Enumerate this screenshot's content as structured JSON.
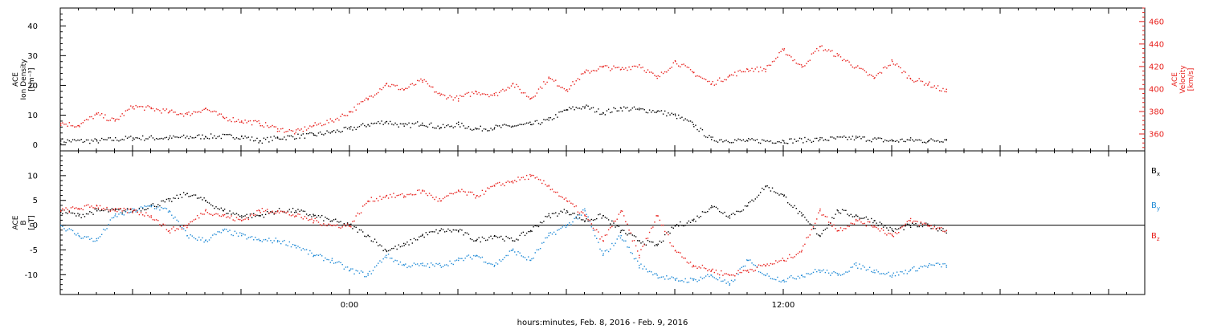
{
  "colors": {
    "black": "#000000",
    "red": "#e8201c",
    "blue": "#1f8ad6"
  },
  "chart_data": [
    {
      "type": "scatter",
      "panel": "top",
      "xlabel": "hours:minutes, Feb.  8, 2016 - Feb.  9, 2016",
      "x_unit": "hours relative to 2016-02-08 00:00 (Feb. 9 00:00 = 24)",
      "xlim": [
        16.0,
        46.0
      ],
      "x_tick_labels": [
        {
          "x": 24,
          "label": "0:00"
        },
        {
          "x": 36,
          "label": "12:00"
        }
      ],
      "left_axis": {
        "label_lines": [
          "ACE",
          "Ion Density",
          "[cm⁻³]"
        ],
        "ylim": [
          -2,
          46
        ],
        "ticks": [
          0,
          10,
          20,
          30,
          40
        ],
        "color": "#000000"
      },
      "right_axis": {
        "label_lines": [
          "ACE",
          "Velocity",
          "[km/s]"
        ],
        "ylim": [
          345,
          472
        ],
        "ticks": [
          360,
          380,
          400,
          420,
          440,
          460
        ],
        "color": "#e8201c"
      },
      "series": [
        {
          "color": "#000000",
          "axis": "left",
          "x": [
            16.0,
            17.0,
            18.0,
            19.0,
            20.0,
            21.0,
            21.5,
            22.0,
            23.0,
            23.5,
            24.0,
            24.5,
            25.0,
            25.5,
            26.0,
            26.5,
            27.0,
            27.5,
            28.0,
            28.5,
            29.0,
            29.5,
            30.0,
            30.5,
            31.0,
            31.5,
            32.0,
            32.5,
            33.0,
            33.5,
            34.0,
            35.0,
            36.0,
            37.0,
            38.0,
            39.0,
            39.5,
            40.0,
            40.5
          ],
          "y": [
            1.5,
            1.5,
            2.5,
            2.5,
            3,
            3,
            1.5,
            2.5,
            3.5,
            4.5,
            5.5,
            7,
            8,
            6.5,
            7.5,
            6,
            7,
            5.5,
            6,
            6.5,
            7,
            8.5,
            12,
            13,
            11,
            12.5,
            12,
            11.5,
            10,
            7,
            2,
            1.5,
            1.5,
            2,
            2.5,
            1.5,
            1.8,
            1.5,
            2
          ]
        },
        {
          "color": "#e8201c",
          "axis": "right",
          "x": [
            16.0,
            16.5,
            17.0,
            17.5,
            18.0,
            18.5,
            19.0,
            19.5,
            20.0,
            20.5,
            21.0,
            21.5,
            22.0,
            22.5,
            23.0,
            23.5,
            24.0,
            24.5,
            25.0,
            25.5,
            26.0,
            26.5,
            27.0,
            27.5,
            28.0,
            28.5,
            29.0,
            29.5,
            30.0,
            30.5,
            31.0,
            31.5,
            32.0,
            32.5,
            33.0,
            33.5,
            34.0,
            34.5,
            35.0,
            35.5,
            36.0,
            36.5,
            37.0,
            37.5,
            38.0,
            38.5,
            39.0,
            39.5,
            40.0,
            40.5
          ],
          "y": [
            370,
            368,
            378,
            372,
            385,
            383,
            380,
            378,
            383,
            375,
            372,
            370,
            365,
            362,
            368,
            372,
            380,
            392,
            405,
            400,
            408,
            395,
            392,
            398,
            395,
            405,
            392,
            410,
            400,
            415,
            420,
            418,
            422,
            410,
            425,
            415,
            405,
            412,
            418,
            418,
            435,
            420,
            438,
            430,
            420,
            410,
            425,
            410,
            405,
            398
          ]
        }
      ]
    },
    {
      "type": "scatter",
      "panel": "bottom",
      "xlim": [
        16.0,
        46.0
      ],
      "left_axis": {
        "label_lines": [
          "ACE",
          "B",
          "[nT]"
        ],
        "ylim": [
          -14,
          15
        ],
        "ticks": [
          -10,
          -5,
          0,
          5,
          10
        ],
        "color": "#000000"
      },
      "zero_line": true,
      "legend_position": "right",
      "series": [
        {
          "name": "B",
          "sub": "x",
          "color": "#000000",
          "x": [
            16.0,
            16.5,
            17.0,
            17.5,
            18.0,
            18.5,
            19.0,
            19.5,
            20.0,
            20.5,
            21.0,
            21.5,
            22.0,
            22.5,
            23.0,
            23.5,
            24.0,
            24.5,
            25.0,
            25.5,
            26.0,
            26.5,
            27.0,
            27.5,
            28.0,
            28.5,
            29.0,
            29.5,
            30.0,
            30.5,
            31.0,
            31.5,
            32.0,
            32.5,
            33.0,
            33.5,
            34.0,
            34.5,
            35.0,
            35.5,
            36.0,
            36.5,
            37.0,
            37.5,
            38.0,
            38.5,
            39.0,
            39.5,
            40.0,
            40.5
          ],
          "y": [
            3,
            2,
            3,
            3,
            3,
            4,
            5,
            6.5,
            5,
            3,
            2,
            2,
            3,
            3,
            2,
            1,
            0,
            -2,
            -5,
            -4,
            -2,
            -1,
            -1,
            -3,
            -2,
            -3,
            -1,
            2,
            3,
            1,
            2,
            -1,
            -3,
            -4,
            0,
            1,
            4,
            2,
            4,
            8,
            6,
            2,
            -2,
            3,
            2,
            1,
            -1,
            0,
            0,
            -1
          ]
        },
        {
          "name": "B",
          "sub": "y",
          "color": "#1f8ad6",
          "x": [
            16.0,
            16.5,
            17.0,
            17.5,
            18.0,
            18.5,
            19.0,
            19.5,
            20.0,
            20.5,
            21.0,
            21.5,
            22.0,
            22.5,
            23.0,
            23.5,
            24.0,
            24.5,
            25.0,
            25.5,
            26.0,
            26.5,
            27.0,
            27.5,
            28.0,
            28.5,
            29.0,
            29.5,
            30.0,
            30.5,
            31.0,
            31.5,
            32.0,
            32.5,
            33.0,
            33.5,
            34.0,
            34.5,
            35.0,
            35.5,
            36.0,
            36.5,
            37.0,
            37.5,
            38.0,
            38.5,
            39.0,
            39.5,
            40.0,
            40.5
          ],
          "y": [
            0,
            -2,
            -3,
            2,
            3,
            4,
            3,
            -2,
            -3,
            -1,
            -2,
            -3,
            -3,
            -4,
            -6,
            -7,
            -9,
            -10,
            -6,
            -8,
            -8,
            -8,
            -7,
            -6,
            -8,
            -5,
            -7,
            -2,
            0,
            3,
            -6,
            -2,
            -8,
            -10,
            -11,
            -11,
            -10,
            -12,
            -7,
            -10,
            -11,
            -10,
            -9,
            -10,
            -8,
            -9,
            -10,
            -9,
            -8,
            -8
          ]
        },
        {
          "name": "B",
          "sub": "z",
          "color": "#e8201c",
          "x": [
            16.0,
            16.5,
            17.0,
            17.5,
            18.0,
            18.5,
            19.0,
            19.5,
            20.0,
            20.5,
            21.0,
            21.5,
            22.0,
            22.5,
            23.0,
            23.5,
            24.0,
            24.5,
            25.0,
            25.5,
            26.0,
            26.5,
            27.0,
            27.5,
            28.0,
            28.5,
            29.0,
            29.5,
            30.0,
            30.5,
            31.0,
            31.5,
            32.0,
            32.5,
            33.0,
            33.5,
            34.0,
            34.5,
            35.0,
            35.5,
            36.0,
            36.5,
            37.0,
            37.5,
            38.0,
            38.5,
            39.0,
            39.5,
            40.0,
            40.5
          ],
          "y": [
            3,
            3.5,
            4,
            3,
            3,
            2,
            -1,
            0,
            3,
            2,
            1,
            3,
            3,
            2,
            1,
            0,
            0,
            5,
            6,
            6,
            7,
            5,
            7,
            6,
            8,
            9,
            10,
            8,
            5,
            2,
            -3,
            3,
            -6,
            2,
            -5,
            -8,
            -9,
            -10,
            -9,
            -8,
            -7,
            -5,
            3,
            -1,
            1,
            0,
            -2,
            1,
            0,
            -1
          ]
        }
      ]
    }
  ]
}
